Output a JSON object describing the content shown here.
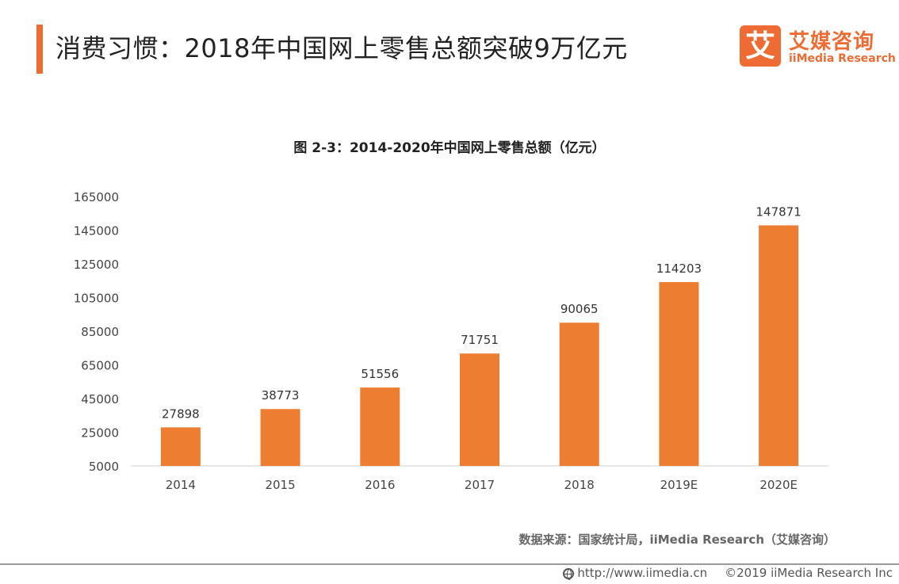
{
  "header": {
    "title": "消费习惯：2018年中国网上零售总额突破9万亿元",
    "accent_color": "#ee6c34"
  },
  "logo": {
    "mark": "艾",
    "name_cn": "艾媒咨询",
    "name_en": "iiMedia Research"
  },
  "chart_data": {
    "type": "bar",
    "title": "图 2-3：2014-2020年中国网上零售总额（亿元）",
    "categories": [
      "2014",
      "2015",
      "2016",
      "2017",
      "2018",
      "2019E",
      "2020E"
    ],
    "values": [
      27898,
      38773,
      51556,
      71751,
      90065,
      114203,
      147871
    ],
    "ylim": [
      5000,
      165000
    ],
    "yticks": [
      5000,
      25000,
      45000,
      65000,
      85000,
      105000,
      125000,
      145000,
      165000
    ],
    "bar_color": "#ed7d31",
    "grid": false,
    "legend": "none"
  },
  "source": "数据来源：国家统计局，iiMedia Research（艾媒咨询）",
  "footer": {
    "url": "http://www.iimedia.cn",
    "copyright": "©2019 iiMedia Research Inc"
  }
}
